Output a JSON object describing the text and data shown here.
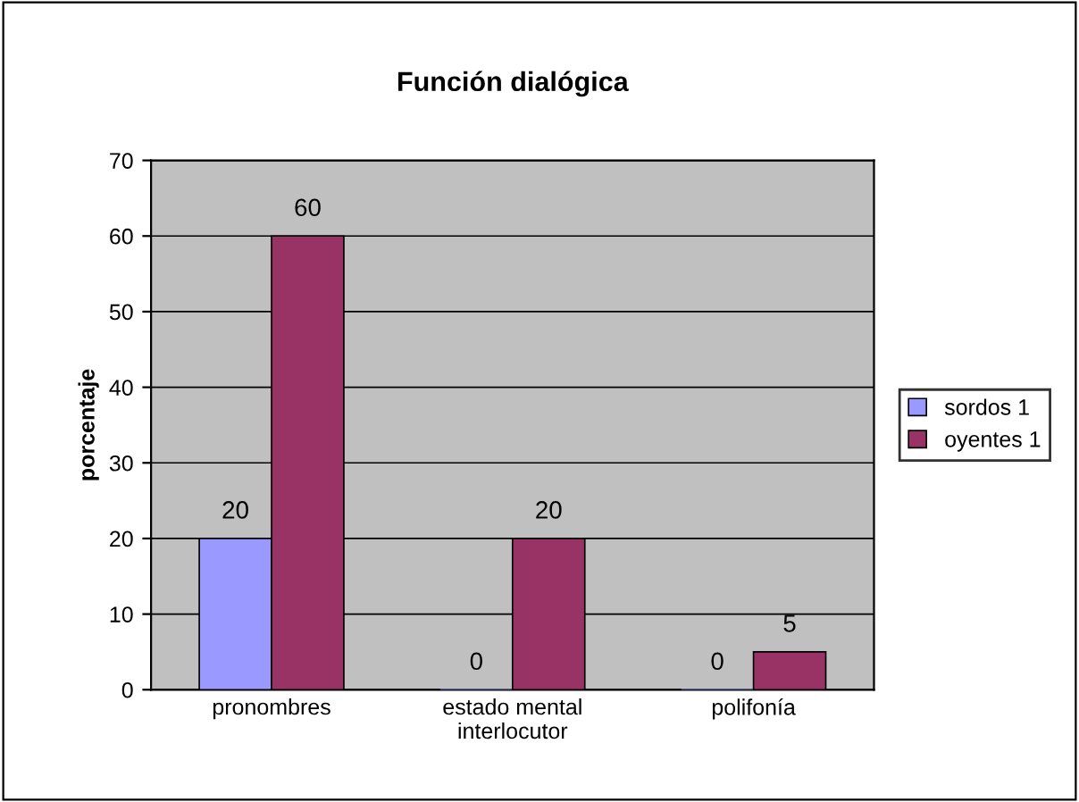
{
  "chart_data": {
    "type": "bar",
    "title": "Función dialógica",
    "ylabel": "porcentaje",
    "categories": [
      "pronombres",
      "estado mental\ninterlocutor",
      "polifonía"
    ],
    "series": [
      {
        "name": "sordos 1",
        "color": "#9999ff",
        "values": [
          20,
          0,
          0
        ]
      },
      {
        "name": "oyentes 1",
        "color": "#993366",
        "values": [
          60,
          20,
          5
        ]
      }
    ],
    "ylim": [
      0,
      70
    ],
    "yticks": [
      0,
      10,
      20,
      30,
      40,
      50,
      60,
      70
    ],
    "grid": "y",
    "legend": "right",
    "data_labels": true
  }
}
